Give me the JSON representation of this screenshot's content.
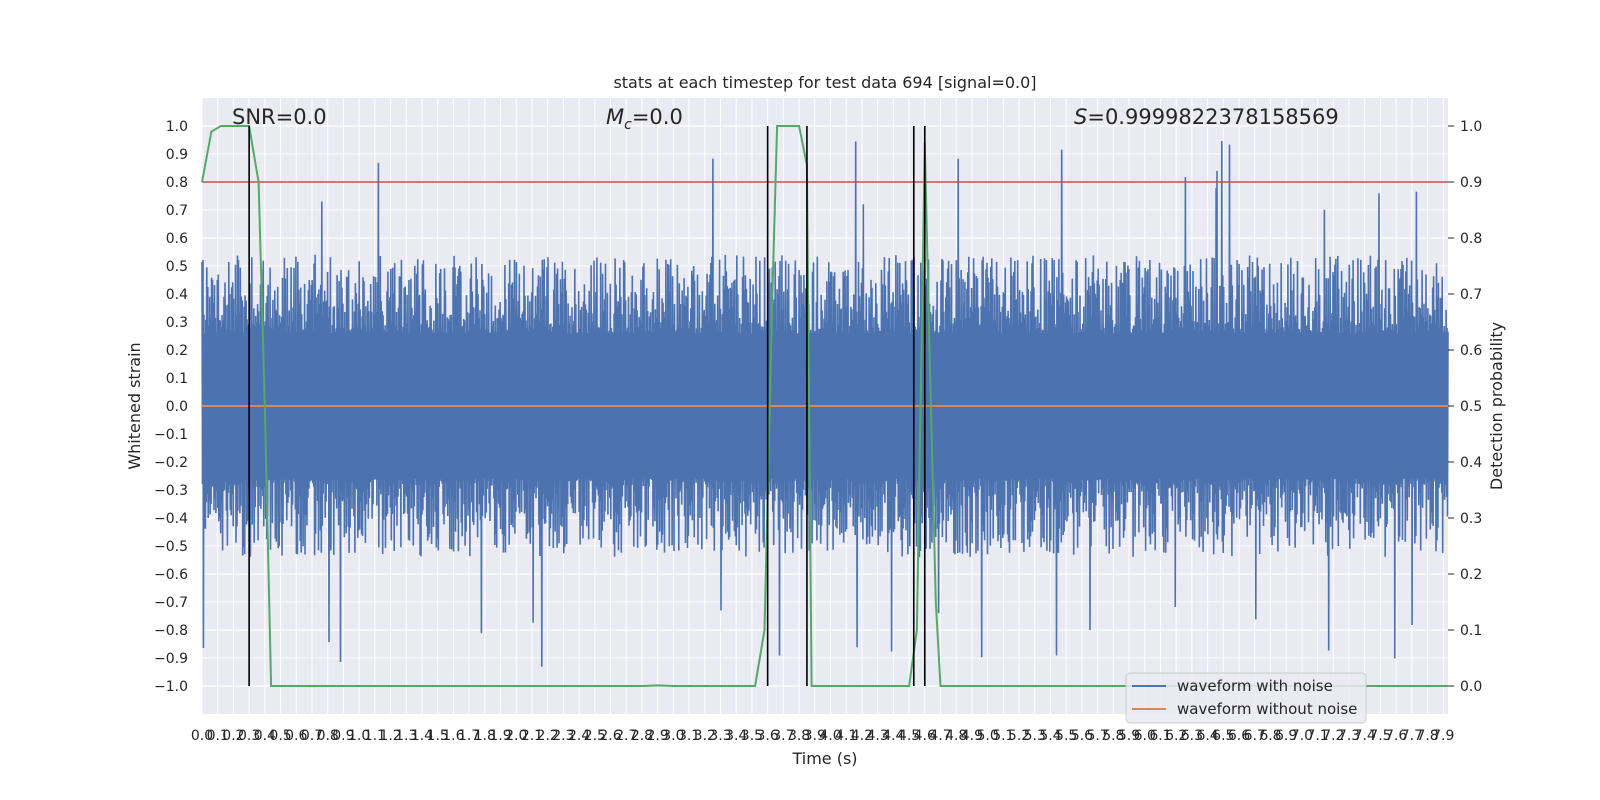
{
  "chart_data": {
    "type": "line",
    "title": "stats at each timestep for test data 694 [signal=0.0]",
    "xlabel": "Time (s)",
    "ylabel": "Whitened strain",
    "y2label": "Detection probability",
    "xlim": [
      0,
      7.93
    ],
    "ylim": [
      -1.1,
      1.1
    ],
    "y2lim": [
      -0.05,
      1.05
    ],
    "grid": true,
    "x_ticks": [
      "0.0",
      "0.1",
      "0.2",
      "0.3",
      "0.4",
      "0.5",
      "0.6",
      "0.7",
      "0.8",
      "0.9",
      "1.0",
      "1.1",
      "1.2",
      "1.3",
      "1.4",
      "1.5",
      "1.6",
      "1.7",
      "1.8",
      "1.9",
      "2.0",
      "2.1",
      "2.2",
      "2.3",
      "2.4",
      "2.5",
      "2.6",
      "2.7",
      "2.8",
      "2.9",
      "3.0",
      "3.1",
      "3.2",
      "3.3",
      "3.4",
      "3.5",
      "3.6",
      "3.7",
      "3.8",
      "3.9",
      "4.0",
      "4.1",
      "4.2",
      "4.3",
      "4.4",
      "4.5",
      "4.6",
      "4.7",
      "4.8",
      "4.9",
      "5.0",
      "5.1",
      "5.2",
      "5.3",
      "5.4",
      "5.5",
      "5.6",
      "5.7",
      "5.8",
      "5.9",
      "6.0",
      "6.1",
      "6.2",
      "6.3",
      "6.4",
      "6.5",
      "6.6",
      "6.7",
      "6.8",
      "6.9",
      "7.0",
      "7.1",
      "7.2",
      "7.3",
      "7.4",
      "7.5",
      "7.6",
      "7.7",
      "7.8",
      "7.9"
    ],
    "y_ticks": [
      "1.0",
      "0.9",
      "0.8",
      "0.7",
      "0.6",
      "0.5",
      "0.4",
      "0.3",
      "0.2",
      "0.1",
      "0.0",
      "−0.1",
      "−0.2",
      "−0.3",
      "−0.4",
      "−0.5",
      "−0.6",
      "−0.7",
      "−0.8",
      "−0.9",
      "−1.0"
    ],
    "y2_ticks": [
      "1.0",
      "0.9",
      "0.8",
      "0.7",
      "0.6",
      "0.5",
      "0.4",
      "0.3",
      "0.2",
      "0.1",
      "0.0"
    ],
    "annotations": {
      "snr": "SNR=0.0",
      "mc_symbol": "M",
      "mc_sub": "c",
      "mc_value": "=0.0",
      "s_symbol": "S",
      "s_value": "=0.9999822378158569"
    },
    "legend": {
      "placement": "lower-right",
      "entries": [
        "waveform with noise",
        "waveform without noise"
      ]
    },
    "threshold_line": {
      "axis": "right",
      "y": 0.9
    },
    "vertical_lines": [
      0.3,
      3.6,
      3.85,
      4.53,
      4.6
    ],
    "series": [
      {
        "name": "waveform with noise",
        "axis": "left",
        "kind": "noise",
        "amplitude_envelope": [
          -1.0,
          1.0
        ],
        "color": "#4c72b0"
      },
      {
        "name": "waveform without noise",
        "axis": "left",
        "x": [
          0,
          7.93
        ],
        "y": [
          0.0,
          0.0
        ],
        "color": "#dd8452"
      },
      {
        "axis": "right",
        "color": "#55a868",
        "x": [
          0.0,
          0.06,
          0.12,
          0.18,
          0.24,
          0.3,
          0.36,
          0.4,
          0.44,
          0.5,
          1.0,
          2.0,
          2.8,
          2.9,
          3.0,
          3.5,
          3.52,
          3.58,
          3.63,
          3.66,
          3.7,
          3.8,
          3.85,
          3.88,
          4.0,
          4.4,
          4.5,
          4.55,
          4.6,
          4.63,
          4.67,
          4.7,
          5.0,
          6.0,
          7.0,
          7.93
        ],
        "y": [
          0.9,
          0.99,
          1.0,
          1.0,
          1.0,
          1.0,
          0.9,
          0.5,
          0.0,
          0.0,
          0.0,
          0.0,
          0.0,
          0.001,
          0.0,
          0.0,
          0.0,
          0.1,
          0.7,
          1.0,
          1.0,
          1.0,
          0.93,
          0.0,
          0.0,
          0.0,
          0.0,
          0.1,
          0.97,
          0.6,
          0.15,
          0.0,
          0.0,
          0.0,
          0.0,
          0.0
        ]
      }
    ],
    "colors": {
      "plot_bg": "#eaeaf2",
      "grid": "#ffffff",
      "threshold": "#c44e52",
      "vline": "#000000"
    }
  }
}
